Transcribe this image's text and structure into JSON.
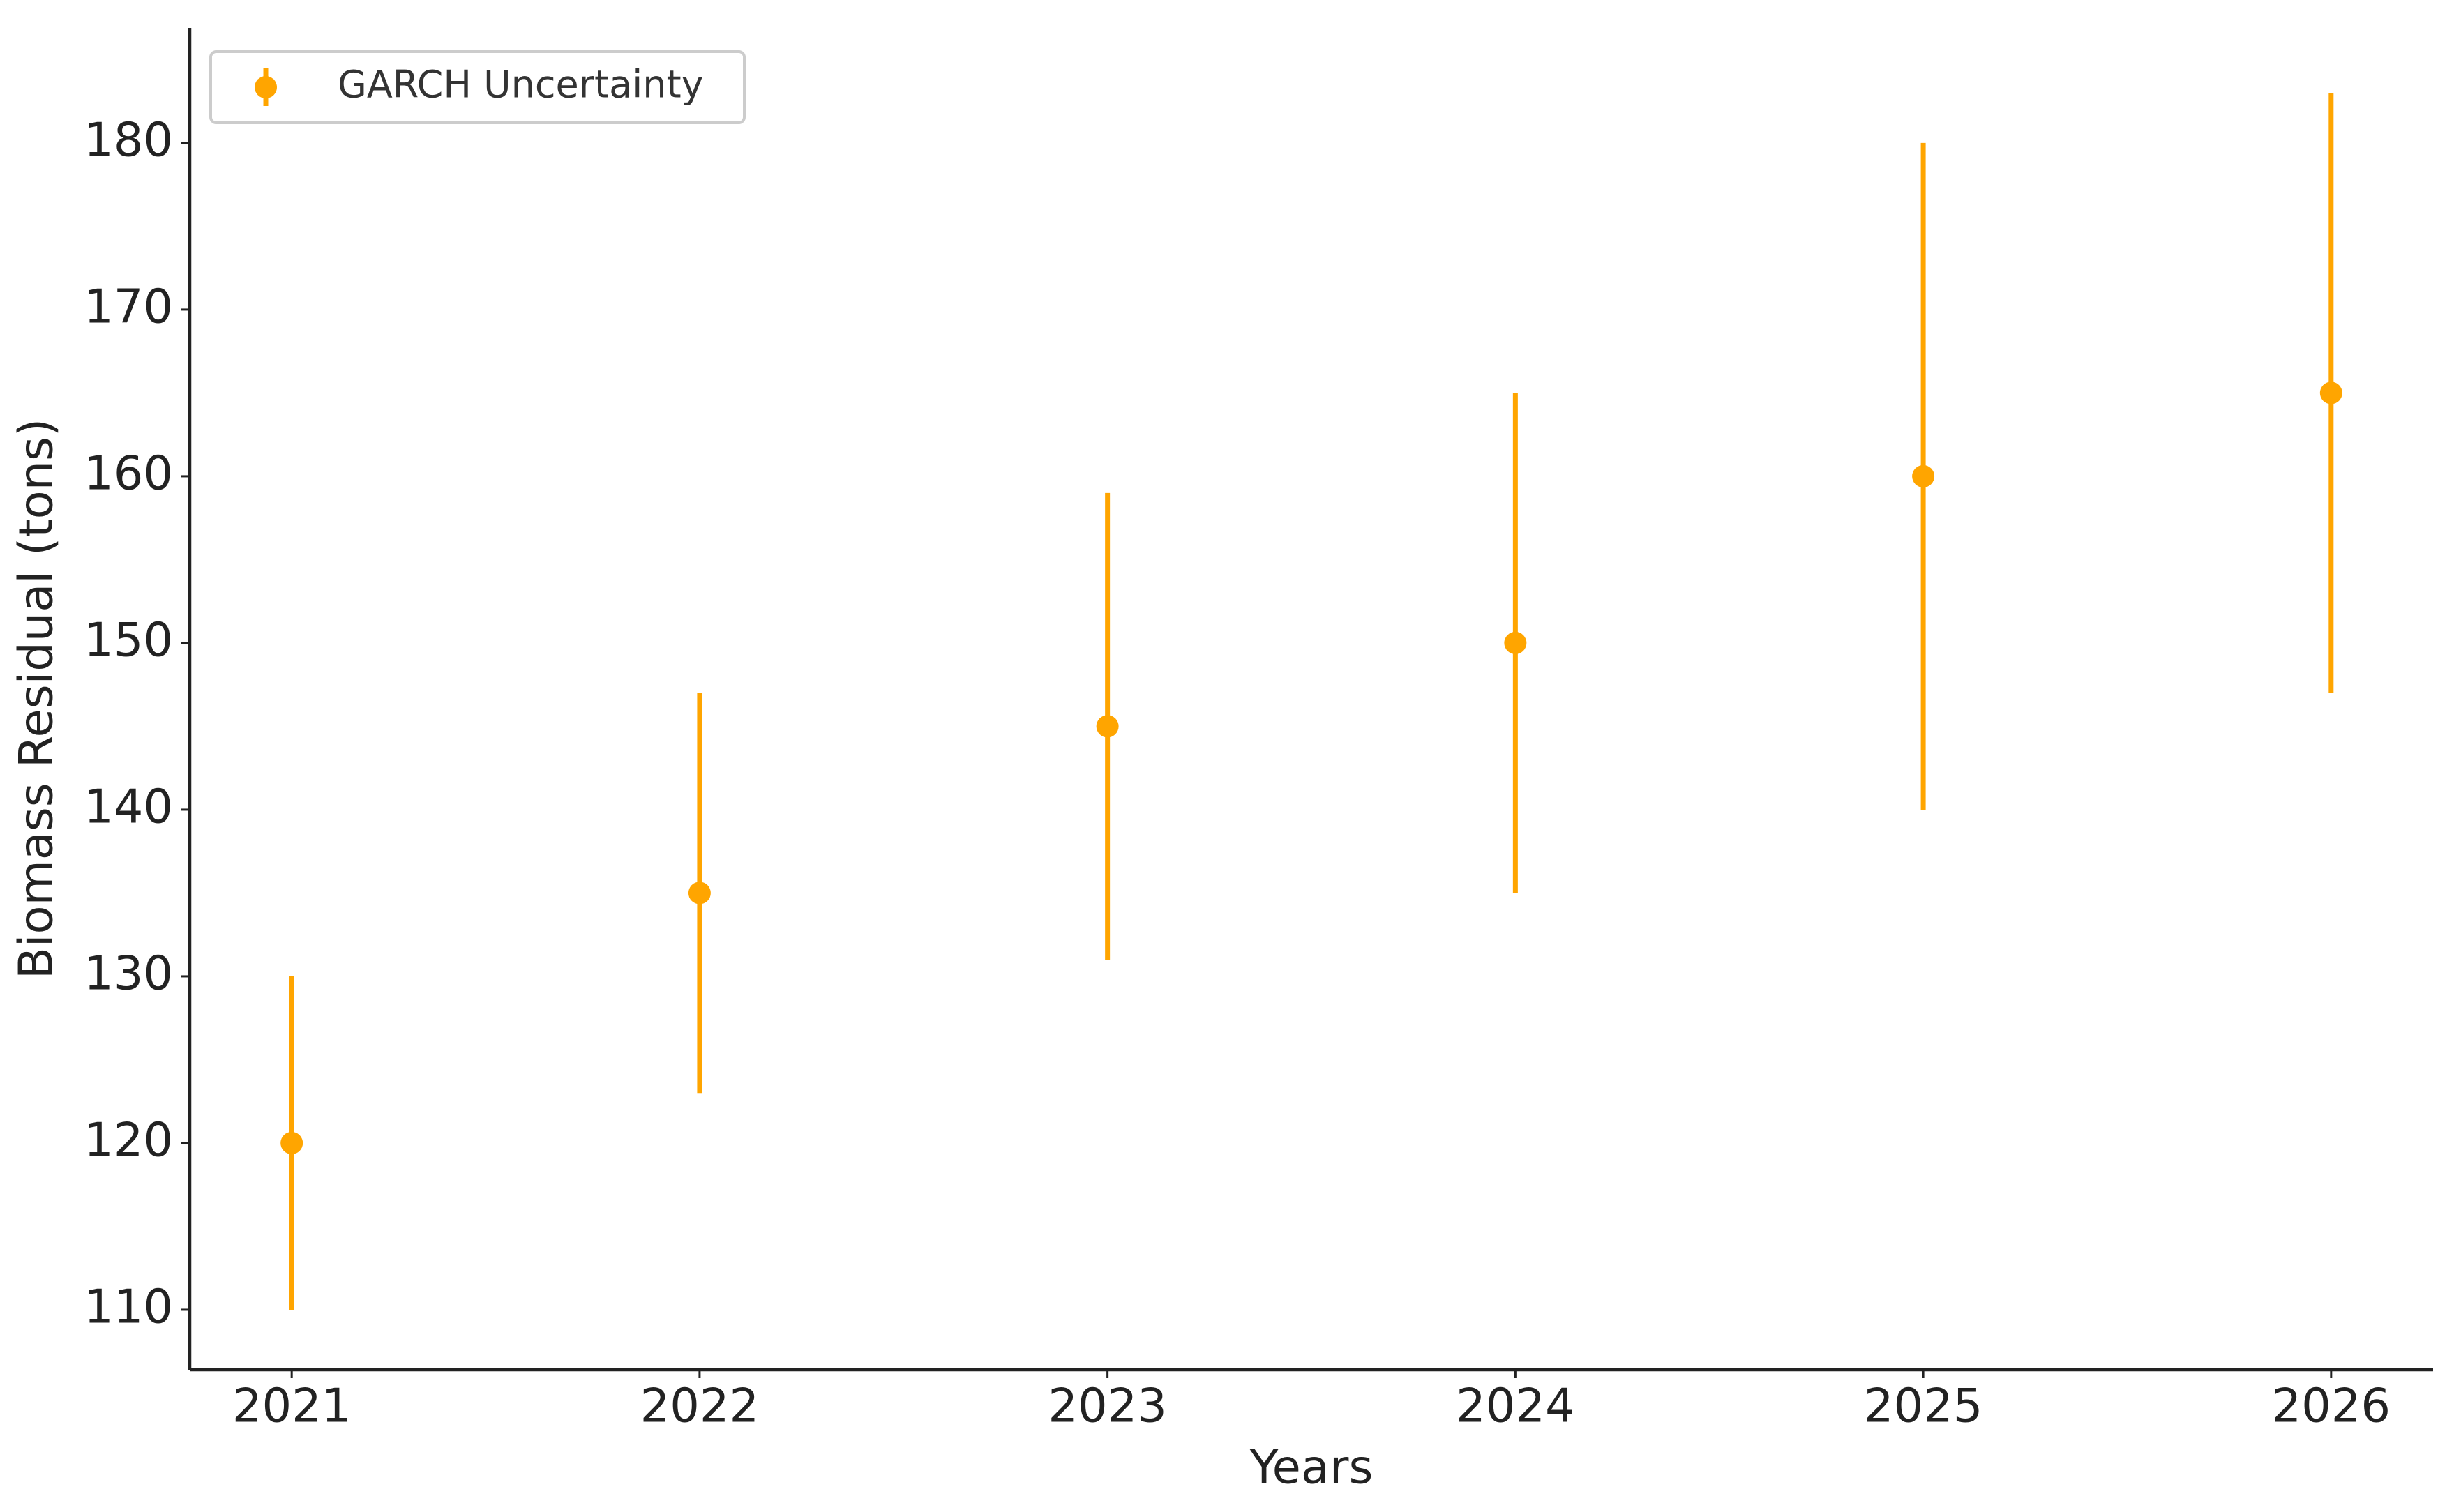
{
  "chart_data": {
    "type": "errorbar",
    "x": [
      2021,
      2022,
      2023,
      2024,
      2025,
      2026
    ],
    "series": [
      {
        "name": "GARCH Uncertainty",
        "color": "#ffa500",
        "values": [
          120,
          135,
          145,
          150,
          160,
          165
        ],
        "errors": [
          10,
          12,
          14,
          15,
          20,
          18
        ]
      }
    ],
    "xlabel": "Years",
    "ylabel": "Biomass Residual (tons)",
    "xlim": [
      2020.75,
      2026.25
    ],
    "xticks": [
      2021,
      2022,
      2023,
      2024,
      2025,
      2026
    ],
    "ylim": [
      106.4,
      186.9
    ],
    "yticks": [
      110,
      120,
      130,
      140,
      150,
      160,
      170,
      180
    ],
    "grid": false,
    "legend": "upper left"
  }
}
